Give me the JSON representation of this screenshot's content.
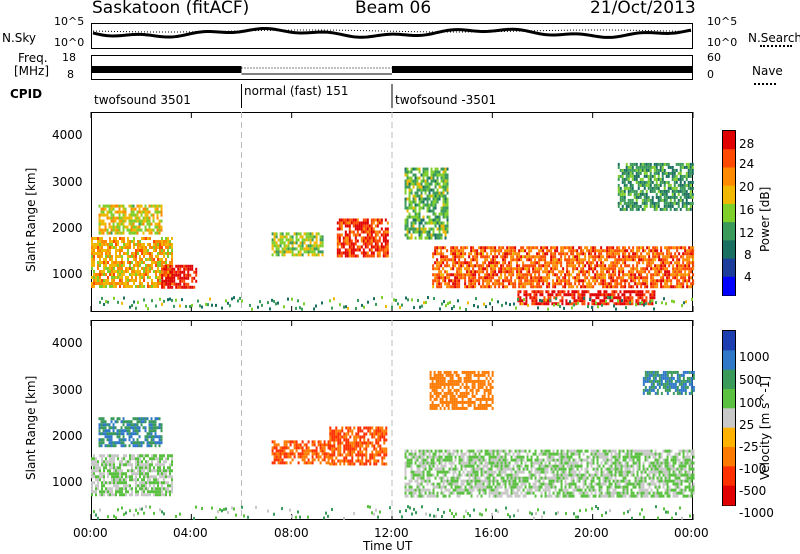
{
  "header": {
    "title": "Saskatoon (fitACF)",
    "beam": "Beam 06",
    "date": "21/Oct/2013"
  },
  "noise_panel": {
    "left_label": "N.Sky",
    "right_label": "N.Search",
    "left_ticks": [
      "10^5",
      "10^0"
    ],
    "right_ticks": [
      "10^5",
      "10^0"
    ]
  },
  "freq_panel": {
    "left_label_1": "Freq.",
    "left_label_2": "[MHz]",
    "left_ticks": [
      "18",
      "8"
    ],
    "right_label": "Nave",
    "right_ticks": [
      "60",
      "0"
    ]
  },
  "cpid": {
    "label": "CPID",
    "segments": [
      {
        "name": "twofsound 3501",
        "start": 0,
        "end": 6
      },
      {
        "name": "normal (fast) 151",
        "start": 6,
        "end": 12
      },
      {
        "name": "twofsound -3501",
        "start": 12,
        "end": 24
      }
    ]
  },
  "chart_data": [
    {
      "type": "heatmap",
      "name": "power",
      "ylabel": "Slant Range [km]",
      "ylim": [
        180,
        4500
      ],
      "yticks": [
        "4000",
        "3000",
        "2000",
        "1000"
      ],
      "xlim": [
        0,
        24
      ],
      "colorbar": {
        "label": "Power [dB]",
        "ticks": [
          "28",
          "24",
          "20",
          "16",
          "12",
          "8",
          "4"
        ],
        "colors": [
          "#e00000",
          "#ff4a00",
          "#ff8a00",
          "#f0b800",
          "#7fcf2a",
          "#3a9a5a",
          "#1a7060",
          "#1c3e9a",
          "#0000ff"
        ]
      },
      "regions": [
        {
          "t0": 0.0,
          "t1": 3.2,
          "r0": 700,
          "r1": 1800,
          "level": 20
        },
        {
          "t0": 2.8,
          "t1": 4.2,
          "r0": 700,
          "r1": 1200,
          "level": 28
        },
        {
          "t0": 0.3,
          "t1": 2.8,
          "r0": 1900,
          "r1": 2500,
          "level": 18
        },
        {
          "t0": 7.2,
          "t1": 9.2,
          "r0": 1400,
          "r1": 1900,
          "level": 16
        },
        {
          "t0": 9.8,
          "t1": 11.8,
          "r0": 1400,
          "r1": 2200,
          "level": 26
        },
        {
          "t0": 13.6,
          "t1": 24.0,
          "r0": 700,
          "r1": 1600,
          "level": 24
        },
        {
          "t0": 17.0,
          "t1": 22.5,
          "r0": 350,
          "r1": 650,
          "level": 28
        },
        {
          "t0": 12.5,
          "t1": 14.2,
          "r0": 1800,
          "r1": 3300,
          "level": 14
        },
        {
          "t0": 21.0,
          "t1": 24.0,
          "r0": 2400,
          "r1": 3400,
          "level": 12
        }
      ]
    },
    {
      "type": "heatmap",
      "name": "velocity",
      "ylabel": "Slant Range [km]",
      "ylim": [
        180,
        4500
      ],
      "yticks": [
        "4000",
        "3000",
        "2000",
        "1000"
      ],
      "xlim": [
        0,
        24
      ],
      "xticks": [
        "00:00",
        "04:00",
        "08:00",
        "12:00",
        "16:00",
        "20:00",
        "00:00"
      ],
      "xlabel": "Time UT",
      "colorbar": {
        "label": "Velocity [m s^-1]",
        "ticks": [
          "1000",
          "500",
          "100",
          "25",
          "-25",
          "-100",
          "-500",
          "-1000"
        ],
        "colors": [
          "#1c3eb0",
          "#2f78c8",
          "#3a9a5a",
          "#5ac040",
          "#c8c8c8",
          "#ffb300",
          "#ff7a00",
          "#ff3000",
          "#e00000"
        ]
      },
      "regions": [
        {
          "t0": 0.0,
          "t1": 3.2,
          "r0": 700,
          "r1": 1600,
          "level": 0
        },
        {
          "t0": 0.3,
          "t1": 2.8,
          "r0": 1800,
          "r1": 2400,
          "level": 100
        },
        {
          "t0": 7.2,
          "t1": 9.5,
          "r0": 1400,
          "r1": 1900,
          "level": -500
        },
        {
          "t0": 9.5,
          "t1": 11.8,
          "r0": 1400,
          "r1": 2200,
          "level": -500
        },
        {
          "t0": 12.5,
          "t1": 24.0,
          "r0": 700,
          "r1": 1700,
          "level": 0
        },
        {
          "t0": 13.5,
          "t1": 16.0,
          "r0": 2600,
          "r1": 3400,
          "level": -300
        },
        {
          "t0": 22.0,
          "t1": 24.0,
          "r0": 2900,
          "r1": 3400,
          "level": 100
        }
      ]
    }
  ]
}
